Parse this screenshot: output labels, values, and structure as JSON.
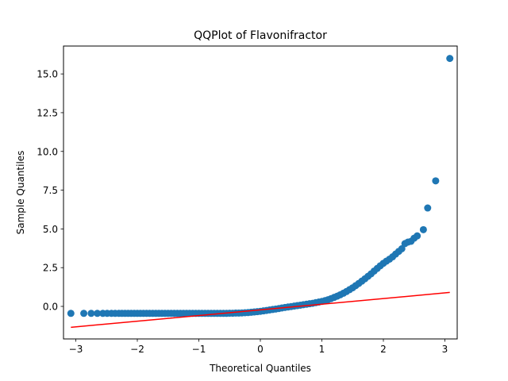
{
  "chart_data": {
    "type": "scatter",
    "title": "QQPlot of Flavonifractor",
    "xlabel": "Theoretical Quantiles",
    "ylabel": "Sample Quantiles",
    "xlim": [
      -3.2,
      3.2
    ],
    "ylim": [
      -2.1,
      16.8
    ],
    "xticks": [
      -3,
      -2,
      -1,
      0,
      1,
      2,
      3
    ],
    "xtick_labels": [
      "−3",
      "−2",
      "−1",
      "0",
      "1",
      "2",
      "3"
    ],
    "yticks": [
      0,
      2.5,
      5,
      7.5,
      10,
      12.5,
      15
    ],
    "ytick_labels": [
      "0.0",
      "2.5",
      "5.0",
      "7.5",
      "10.0",
      "12.5",
      "15.0"
    ],
    "grid": false,
    "series": [
      {
        "kind": "scatter",
        "color": "#1f77b4",
        "x": [
          -3.08,
          -2.87,
          -2.75,
          -2.65,
          -2.56,
          -2.49,
          -2.42,
          -2.36,
          -2.3,
          -2.25,
          -2.2,
          -2.15,
          -2.1,
          -2.05,
          -2.0,
          -1.95,
          -1.9,
          -1.85,
          -1.8,
          -1.75,
          -1.7,
          -1.65,
          -1.6,
          -1.55,
          -1.5,
          -1.45,
          -1.4,
          -1.35,
          -1.3,
          -1.25,
          -1.2,
          -1.15,
          -1.1,
          -1.05,
          -1.0,
          -0.95,
          -0.9,
          -0.85,
          -0.8,
          -0.75,
          -0.7,
          -0.65,
          -0.6,
          -0.55,
          -0.5,
          -0.45,
          -0.4,
          -0.35,
          -0.3,
          -0.25,
          -0.2,
          -0.15,
          -0.1,
          -0.05,
          0.0,
          0.05,
          0.1,
          0.15,
          0.2,
          0.25,
          0.3,
          0.35,
          0.4,
          0.45,
          0.5,
          0.55,
          0.6,
          0.65,
          0.7,
          0.75,
          0.8,
          0.85,
          0.9,
          0.95,
          1.0,
          1.05,
          1.1,
          1.15,
          1.2,
          1.25,
          1.3,
          1.35,
          1.4,
          1.45,
          1.5,
          1.55,
          1.6,
          1.65,
          1.7,
          1.75,
          1.8,
          1.85,
          1.9,
          1.95,
          2.0,
          2.05,
          2.1,
          2.15,
          2.2,
          2.25,
          2.3,
          2.35,
          2.4,
          2.45,
          2.5,
          2.55,
          2.65,
          2.72,
          2.85,
          3.08
        ],
        "y": [
          -0.45,
          -0.45,
          -0.45,
          -0.45,
          -0.45,
          -0.45,
          -0.45,
          -0.45,
          -0.45,
          -0.45,
          -0.45,
          -0.45,
          -0.45,
          -0.45,
          -0.45,
          -0.45,
          -0.45,
          -0.45,
          -0.45,
          -0.45,
          -0.45,
          -0.45,
          -0.45,
          -0.45,
          -0.45,
          -0.45,
          -0.45,
          -0.45,
          -0.45,
          -0.45,
          -0.45,
          -0.45,
          -0.45,
          -0.45,
          -0.45,
          -0.45,
          -0.45,
          -0.45,
          -0.45,
          -0.45,
          -0.45,
          -0.45,
          -0.45,
          -0.45,
          -0.44,
          -0.44,
          -0.43,
          -0.43,
          -0.42,
          -0.41,
          -0.4,
          -0.38,
          -0.36,
          -0.34,
          -0.32,
          -0.29,
          -0.26,
          -0.23,
          -0.2,
          -0.17,
          -0.14,
          -0.1,
          -0.07,
          -0.04,
          -0.01,
          0.02,
          0.05,
          0.08,
          0.11,
          0.14,
          0.17,
          0.2,
          0.24,
          0.28,
          0.32,
          0.37,
          0.43,
          0.5,
          0.58,
          0.66,
          0.75,
          0.85,
          0.96,
          1.08,
          1.2,
          1.34,
          1.48,
          1.63,
          1.78,
          1.94,
          2.1,
          2.28,
          2.45,
          2.62,
          2.78,
          2.92,
          3.05,
          3.2,
          3.38,
          3.55,
          3.72,
          4.05,
          4.15,
          4.2,
          4.4,
          4.55,
          4.95,
          6.35,
          8.1,
          16.0
        ]
      },
      {
        "kind": "line",
        "color": "#ff0000",
        "x": [
          -3.08,
          3.08
        ],
        "y": [
          -1.35,
          0.9
        ]
      }
    ]
  }
}
